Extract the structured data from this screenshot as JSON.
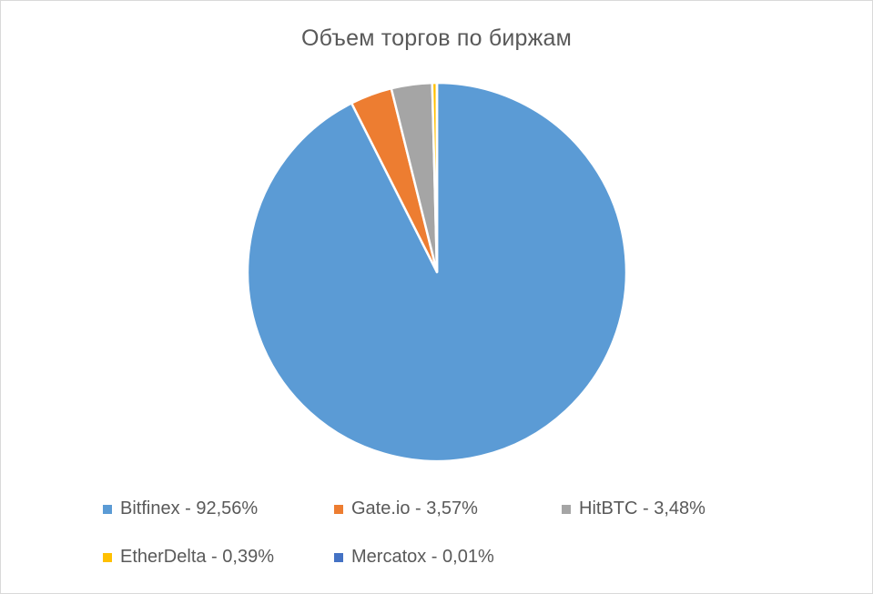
{
  "chart_data": {
    "type": "pie",
    "title": "Объем торгов по биржам",
    "categories": [
      "Bitfinex",
      "Gate.io",
      "HitBTC",
      "EtherDelta",
      "Mercatox"
    ],
    "values": [
      92.56,
      3.57,
      3.48,
      0.39,
      0.01
    ],
    "legend_labels": [
      "Bitfinex - 92,56%",
      "Gate.io - 3,57%",
      "HitBTC - 3,48%",
      "EtherDelta - 0,39%",
      "Mercatox - 0,01%"
    ],
    "colors": [
      "#5b9bd5",
      "#ed7d31",
      "#a5a5a5",
      "#ffc000",
      "#4472c4"
    ],
    "legend_position": "bottom",
    "slice_border_color": "#ffffff"
  }
}
